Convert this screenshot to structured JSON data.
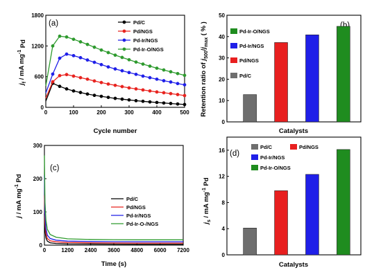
{
  "chart_data": [
    {
      "panel": "(a)",
      "type": "line",
      "xlabel": "Cycle number",
      "ylabel_parts": [
        "j",
        "f",
        " / mA mg",
        "-1",
        " Pd"
      ],
      "xlim": [
        0,
        500
      ],
      "ylim": [
        0,
        1800
      ],
      "xticks": [
        0,
        100,
        200,
        300,
        400,
        500
      ],
      "yticks": [
        0,
        600,
        1200,
        1800
      ],
      "legend_position": "top-right",
      "series": [
        {
          "name": "Pd/C",
          "color": "#000000",
          "x": [
            0,
            25,
            50,
            75,
            100,
            125,
            150,
            175,
            200,
            225,
            250,
            275,
            300,
            325,
            350,
            375,
            400,
            425,
            450,
            475,
            500
          ],
          "y": [
            120,
            470,
            410,
            360,
            320,
            290,
            260,
            235,
            215,
            195,
            175,
            160,
            145,
            130,
            118,
            106,
            95,
            85,
            75,
            65,
            55
          ]
        },
        {
          "name": "Pd/NGS",
          "color": "#e8231f",
          "x": [
            0,
            25,
            50,
            75,
            100,
            125,
            150,
            175,
            200,
            225,
            250,
            275,
            300,
            325,
            350,
            375,
            400,
            425,
            450,
            475,
            500
          ],
          "y": [
            180,
            500,
            620,
            640,
            610,
            580,
            550,
            515,
            485,
            455,
            430,
            405,
            380,
            360,
            340,
            320,
            300,
            285,
            268,
            250,
            230
          ]
        },
        {
          "name": "Pd-Ir/NGS",
          "color": "#1f1fe8",
          "x": [
            0,
            25,
            50,
            75,
            100,
            125,
            150,
            175,
            200,
            225,
            250,
            275,
            300,
            325,
            350,
            375,
            400,
            425,
            450,
            475,
            500
          ],
          "y": [
            280,
            650,
            960,
            1040,
            1010,
            970,
            925,
            880,
            835,
            790,
            750,
            715,
            680,
            645,
            610,
            580,
            550,
            520,
            495,
            465,
            440
          ]
        },
        {
          "name": "Pd-Ir-O/NGS",
          "color": "#2e9a2e",
          "x": [
            0,
            25,
            50,
            75,
            100,
            125,
            150,
            175,
            200,
            225,
            250,
            275,
            300,
            325,
            350,
            375,
            400,
            425,
            450,
            475,
            500
          ],
          "y": [
            420,
            1200,
            1390,
            1375,
            1330,
            1280,
            1230,
            1175,
            1120,
            1070,
            1020,
            975,
            930,
            885,
            845,
            805,
            765,
            730,
            695,
            660,
            625
          ]
        }
      ]
    },
    {
      "panel": "(b)",
      "type": "bar",
      "xlabel": "Catalysts",
      "ylabel_parts": [
        "Retention ratio of ",
        "j",
        "500",
        "/",
        "j",
        "max",
        "  ( % )"
      ],
      "ylim": [
        0,
        50
      ],
      "yticks": [
        0,
        10,
        20,
        30,
        40,
        50
      ],
      "legend_position": "top-left",
      "legend_order": [
        "Pd-Ir-O/NGS",
        "Pd-Ir/NGS",
        "Pd/NGS",
        "Pd/C"
      ],
      "categories": [
        "Pd/C",
        "Pd/NGS",
        "Pd-Ir/NGS",
        "Pd-Ir-O/NGS"
      ],
      "values": [
        12.8,
        37.2,
        40.8,
        44.8
      ],
      "colors": [
        "#6e6e6e",
        "#e81f1f",
        "#1f1fe8",
        "#1f8c1f"
      ]
    },
    {
      "panel": "(c)",
      "type": "line",
      "xlabel": "Time (s)",
      "ylabel_parts": [
        "j",
        " / mA mg",
        "-1",
        " Pd"
      ],
      "xlim": [
        0,
        7200
      ],
      "ylim": [
        0,
        300
      ],
      "xticks": [
        0,
        1200,
        2400,
        3600,
        4800,
        6000,
        7200
      ],
      "yticks": [
        0,
        100,
        200,
        300
      ],
      "legend_position": "bottom-right",
      "series": [
        {
          "name": "Pd/C",
          "color": "#000000",
          "x": [
            0,
            30,
            80,
            150,
            300,
            600,
            1200,
            2400,
            3600,
            4800,
            6000,
            7200
          ],
          "y": [
            95,
            45,
            22,
            12,
            7,
            5,
            4,
            3.5,
            3.2,
            3,
            3,
            3
          ]
        },
        {
          "name": "Pd/NGS",
          "color": "#e8231f",
          "x": [
            0,
            30,
            80,
            150,
            300,
            600,
            1200,
            2400,
            3600,
            4800,
            6000,
            7200
          ],
          "y": [
            150,
            70,
            35,
            20,
            13,
            10,
            8,
            7,
            6.5,
            6,
            6,
            6
          ]
        },
        {
          "name": "Pd-Ir/NGS",
          "color": "#1f1fe8",
          "x": [
            0,
            30,
            80,
            150,
            300,
            600,
            1200,
            2400,
            3600,
            4800,
            6000,
            7200
          ],
          "y": [
            210,
            95,
            50,
            30,
            20,
            15,
            12,
            11,
            10.5,
            10,
            10,
            10
          ]
        },
        {
          "name": "Pd-Ir-O-/NGS",
          "color": "#2e9a2e",
          "x": [
            0,
            30,
            80,
            150,
            300,
            600,
            1200,
            2400,
            3600,
            4800,
            6000,
            7200
          ],
          "y": [
            270,
            130,
            75,
            48,
            32,
            24,
            19,
            17,
            16.5,
            16,
            16,
            16
          ]
        }
      ]
    },
    {
      "panel": "(d)",
      "type": "bar",
      "xlabel": "Catalysts",
      "ylabel_parts": [
        "j",
        "s",
        " / mA mg",
        "-1",
        " Pd"
      ],
      "ylim": [
        0,
        18
      ],
      "yticks": [
        0,
        4,
        8,
        12,
        16
      ],
      "legend_position": "top-left",
      "legend_order": [
        "Pd/C",
        "Pd/NGS",
        "Pd-Ir/NGS",
        "Pd-Ir-O/NGS"
      ],
      "categories": [
        "Pd/C",
        "Pd/NGS",
        "Pd-Ir/NGS",
        "Pd-Ir-O/NGS"
      ],
      "values": [
        4.1,
        9.8,
        12.3,
        16.1
      ],
      "colors": [
        "#6e6e6e",
        "#e81f1f",
        "#1f1fe8",
        "#1f8c1f"
      ]
    }
  ]
}
